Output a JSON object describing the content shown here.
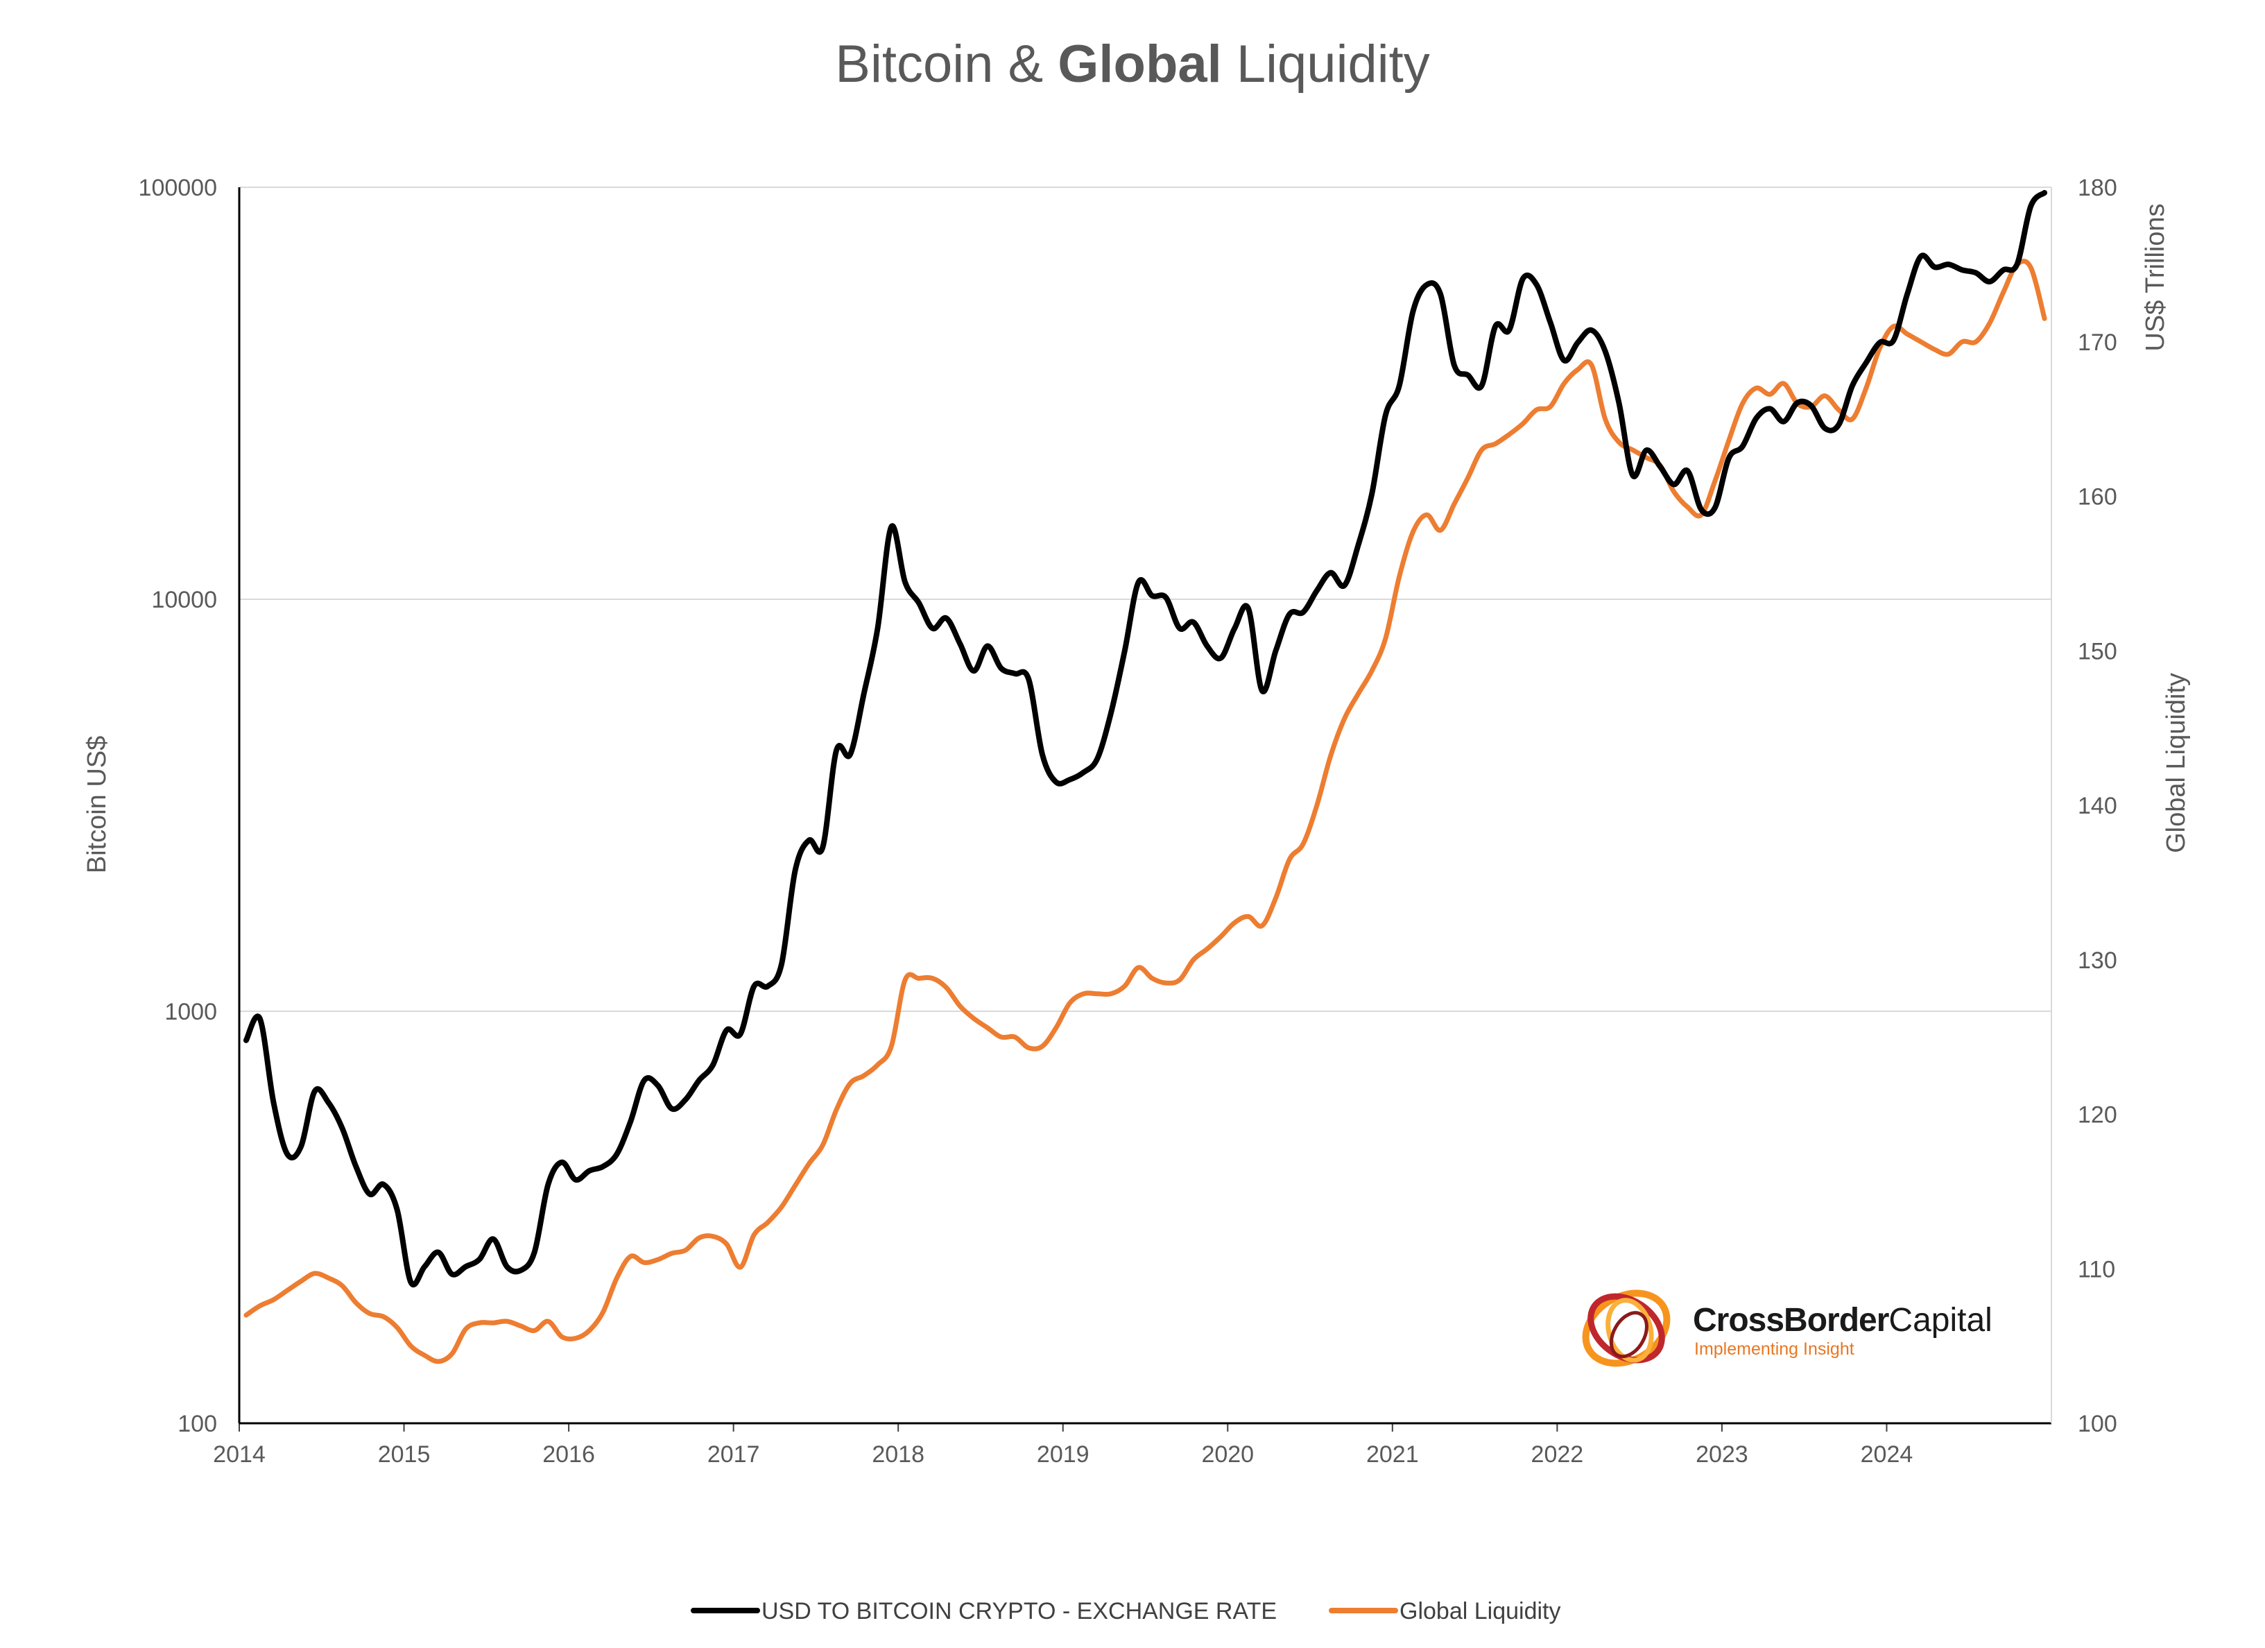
{
  "chart_data": {
    "type": "line",
    "title": {
      "part1": "Bitcoin & ",
      "bold": "Global",
      "part2": " Liquidity"
    },
    "ylabel_left": "Bitcoin US$",
    "ylabel_right_units": "US$ Trillions",
    "ylabel_right": "Global Liquidity",
    "y_left_scale": "log",
    "y_left_lim": [
      100,
      100000
    ],
    "y_left_ticks": [
      "100",
      "1000",
      "10000",
      "100000"
    ],
    "y_right_lim": [
      100,
      180
    ],
    "y_right_ticks": [
      "100",
      "110",
      "120",
      "130",
      "140",
      "150",
      "160",
      "170",
      "180"
    ],
    "x_lim": [
      "2014-01",
      "2024-12"
    ],
    "x_ticks": [
      "2014",
      "2015",
      "2016",
      "2017",
      "2018",
      "2019",
      "2020",
      "2021",
      "2022",
      "2023",
      "2024"
    ],
    "grid": "horizontal",
    "legend_position": "bottom",
    "colors": {
      "bitcoin": "#000000",
      "liquidity": "#ed7d31"
    },
    "series": [
      {
        "name": "USD TO BITCOIN CRYPTO - EXCHANGE RATE",
        "axis": "left",
        "x": [
          "2014-01",
          "2014-02",
          "2014-03",
          "2014-04",
          "2014-05",
          "2014-06",
          "2014-07",
          "2014-08",
          "2014-09",
          "2014-10",
          "2014-11",
          "2014-12",
          "2015-01",
          "2015-02",
          "2015-03",
          "2015-04",
          "2015-05",
          "2015-06",
          "2015-07",
          "2015-08",
          "2015-09",
          "2015-10",
          "2015-11",
          "2015-12",
          "2016-01",
          "2016-02",
          "2016-03",
          "2016-04",
          "2016-05",
          "2016-06",
          "2016-07",
          "2016-08",
          "2016-09",
          "2016-10",
          "2016-11",
          "2016-12",
          "2017-01",
          "2017-02",
          "2017-03",
          "2017-04",
          "2017-05",
          "2017-06",
          "2017-07",
          "2017-08",
          "2017-09",
          "2017-10",
          "2017-11",
          "2017-12",
          "2018-01",
          "2018-02",
          "2018-03",
          "2018-04",
          "2018-05",
          "2018-06",
          "2018-07",
          "2018-08",
          "2018-09",
          "2018-10",
          "2018-11",
          "2018-12",
          "2019-01",
          "2019-02",
          "2019-03",
          "2019-04",
          "2019-05",
          "2019-06",
          "2019-07",
          "2019-08",
          "2019-09",
          "2019-10",
          "2019-11",
          "2019-12",
          "2020-01",
          "2020-02",
          "2020-03",
          "2020-04",
          "2020-05",
          "2020-06",
          "2020-07",
          "2020-08",
          "2020-09",
          "2020-10",
          "2020-11",
          "2020-12",
          "2021-01",
          "2021-02",
          "2021-03",
          "2021-04",
          "2021-05",
          "2021-06",
          "2021-07",
          "2021-08",
          "2021-09",
          "2021-10",
          "2021-11",
          "2021-12",
          "2022-01",
          "2022-02",
          "2022-03",
          "2022-04",
          "2022-05",
          "2022-06",
          "2022-07",
          "2022-08",
          "2022-09",
          "2022-10",
          "2022-11",
          "2022-12",
          "2023-01",
          "2023-02",
          "2023-03",
          "2023-04",
          "2023-05",
          "2023-06",
          "2023-07",
          "2023-08",
          "2023-09",
          "2023-10",
          "2023-11",
          "2023-12",
          "2024-01",
          "2024-02",
          "2024-03",
          "2024-04",
          "2024-05",
          "2024-06",
          "2024-07",
          "2024-08",
          "2024-09",
          "2024-10",
          "2024-11",
          "2024-12"
        ],
        "values": [
          850,
          960,
          600,
          450,
          470,
          640,
          600,
          520,
          420,
          360,
          380,
          330,
          220,
          240,
          260,
          230,
          240,
          250,
          280,
          240,
          235,
          260,
          380,
          430,
          390,
          410,
          420,
          450,
          540,
          680,
          660,
          580,
          610,
          680,
          740,
          900,
          880,
          1150,
          1150,
          1300,
          2200,
          2600,
          2500,
          4300,
          4200,
          5900,
          8500,
          15000,
          11000,
          9800,
          8500,
          9000,
          7800,
          6700,
          7700,
          6800,
          6600,
          6400,
          4200,
          3600,
          3650,
          3800,
          4100,
          5300,
          7500,
          11000,
          10200,
          10100,
          8500,
          8800,
          7700,
          7200,
          8500,
          9500,
          6000,
          7500,
          9200,
          9300,
          10500,
          11600,
          10800,
          13500,
          18000,
          28000,
          33000,
          50000,
          58000,
          55000,
          37000,
          35000,
          33000,
          46000,
          45000,
          60000,
          58000,
          47000,
          38000,
          42000,
          45000,
          40000,
          30000,
          20000,
          23000,
          21000,
          19000,
          20500,
          16500,
          16700,
          22000,
          23500,
          27500,
          29000,
          27000,
          30000,
          29500,
          26000,
          26500,
          33000,
          37500,
          42000,
          42500,
          55000,
          68000,
          64000,
          65000,
          63000,
          62000,
          59000,
          63000,
          65000,
          90000,
          97000
        ]
      },
      {
        "name": "Global Liquidity",
        "axis": "right",
        "x": [
          "2014-01",
          "2014-02",
          "2014-03",
          "2014-04",
          "2014-05",
          "2014-06",
          "2014-07",
          "2014-08",
          "2014-09",
          "2014-10",
          "2014-11",
          "2014-12",
          "2015-01",
          "2015-02",
          "2015-03",
          "2015-04",
          "2015-05",
          "2015-06",
          "2015-07",
          "2015-08",
          "2015-09",
          "2015-10",
          "2015-11",
          "2015-12",
          "2016-01",
          "2016-02",
          "2016-03",
          "2016-04",
          "2016-05",
          "2016-06",
          "2016-07",
          "2016-08",
          "2016-09",
          "2016-10",
          "2016-11",
          "2016-12",
          "2017-01",
          "2017-02",
          "2017-03",
          "2017-04",
          "2017-05",
          "2017-06",
          "2017-07",
          "2017-08",
          "2017-09",
          "2017-10",
          "2017-11",
          "2017-12",
          "2018-01",
          "2018-02",
          "2018-03",
          "2018-04",
          "2018-05",
          "2018-06",
          "2018-07",
          "2018-08",
          "2018-09",
          "2018-10",
          "2018-11",
          "2018-12",
          "2019-01",
          "2019-02",
          "2019-03",
          "2019-04",
          "2019-05",
          "2019-06",
          "2019-07",
          "2019-08",
          "2019-09",
          "2019-10",
          "2019-11",
          "2019-12",
          "2020-01",
          "2020-02",
          "2020-03",
          "2020-04",
          "2020-05",
          "2020-06",
          "2020-07",
          "2020-08",
          "2020-09",
          "2020-10",
          "2020-11",
          "2020-12",
          "2021-01",
          "2021-02",
          "2021-03",
          "2021-04",
          "2021-05",
          "2021-06",
          "2021-07",
          "2021-08",
          "2021-09",
          "2021-10",
          "2021-11",
          "2021-12",
          "2022-01",
          "2022-02",
          "2022-03",
          "2022-04",
          "2022-05",
          "2022-06",
          "2022-07",
          "2022-08",
          "2022-09",
          "2022-10",
          "2022-11",
          "2022-12",
          "2023-01",
          "2023-02",
          "2023-03",
          "2023-04",
          "2023-05",
          "2023-06",
          "2023-07",
          "2023-08",
          "2023-09",
          "2023-10",
          "2023-11",
          "2023-12",
          "2024-01",
          "2024-02",
          "2024-03",
          "2024-04",
          "2024-05",
          "2024-06",
          "2024-07",
          "2024-08",
          "2024-09",
          "2024-10",
          "2024-11",
          "2024-12"
        ],
        "values": [
          107,
          107.6,
          108,
          108.6,
          109.2,
          109.7,
          109.4,
          108.9,
          107.8,
          107.1,
          106.9,
          106.2,
          105.0,
          104.4,
          104.0,
          104.5,
          106.1,
          106.5,
          106.5,
          106.6,
          106.3,
          106.0,
          106.6,
          105.6,
          105.5,
          106.0,
          107.2,
          109.4,
          110.8,
          110.4,
          110.6,
          111.0,
          111.2,
          112.0,
          112.1,
          111.6,
          110.1,
          112.2,
          113.0,
          114.0,
          115.4,
          116.8,
          118.0,
          120.3,
          122.0,
          122.5,
          123.2,
          124.4,
          128.7,
          128.8,
          128.8,
          128.2,
          127.0,
          126.2,
          125.6,
          125.0,
          125.0,
          124.3,
          124.4,
          125.6,
          127.2,
          127.8,
          127.8,
          127.8,
          128.3,
          129.5,
          128.8,
          128.5,
          128.7,
          130.0,
          130.7,
          131.5,
          132.4,
          132.8,
          132.2,
          134.0,
          136.5,
          137.5,
          140.0,
          143.2,
          145.6,
          147.2,
          148.7,
          150.8,
          154.8,
          157.7,
          158.8,
          157.8,
          159.5,
          161.2,
          163.0,
          163.4,
          164.0,
          164.7,
          165.6,
          165.8,
          167.3,
          168.2,
          168.5,
          165.0,
          163.5,
          163.0,
          162.5,
          162.0,
          160.3,
          159.3,
          158.8,
          161.0,
          163.6,
          166.0,
          167.0,
          166.6,
          167.3,
          166.0,
          165.8,
          166.5,
          165.6,
          165.0,
          167.0,
          169.6,
          171.0,
          170.5,
          170.0,
          169.5,
          169.2,
          170.0,
          170.0,
          171.2,
          173.2,
          175.0,
          174.8,
          171.5
        ]
      }
    ]
  },
  "legend": {
    "items": [
      {
        "label": "USD TO BITCOIN CRYPTO - EXCHANGE RATE",
        "color": "#000000"
      },
      {
        "label": "Global Liquidity",
        "color": "#ed7d31"
      }
    ]
  },
  "logo": {
    "name_bold": "CrossBorder",
    "name_regular": "Capital",
    "tagline": "Implementing Insight",
    "colors": {
      "red": "#c0272d",
      "orange": "#f7941d",
      "yellow": "#fbb03b",
      "dark": "#1a1a1a"
    }
  }
}
